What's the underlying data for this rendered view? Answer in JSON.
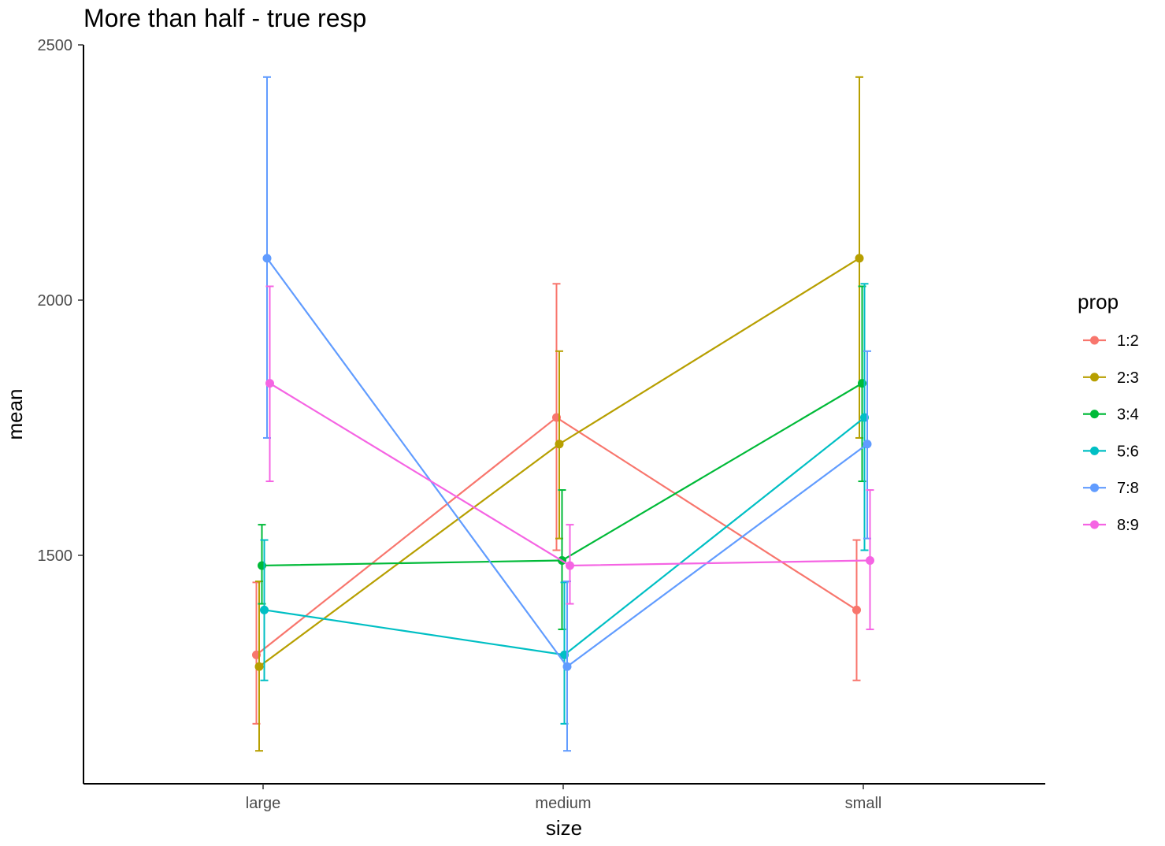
{
  "chart_data": {
    "type": "line",
    "title": "More than half - true resp",
    "xlabel": "size",
    "ylabel": "mean",
    "categories": [
      "large",
      "medium",
      "small"
    ],
    "yticks": [
      1500,
      2000,
      2500
    ],
    "ylim": [
      1055,
      2500
    ],
    "grid": false,
    "legend": {
      "title": "prop",
      "position": "right"
    },
    "series": [
      {
        "name": "1:2",
        "color": "#F8766D",
        "values": [
          1305,
          1770,
          1393
        ],
        "lower": [
          1170,
          1510,
          1255
        ],
        "upper": [
          1447,
          2032,
          1530
        ]
      },
      {
        "name": "2:3",
        "color": "#B79F00",
        "values": [
          1282,
          1718,
          2082
        ],
        "lower": [
          1117,
          1533,
          1730
        ],
        "upper": [
          1449,
          1900,
          2437
        ]
      },
      {
        "name": "3:4",
        "color": "#00BA38",
        "values": [
          1480,
          1490,
          1837
        ],
        "lower": [
          1405,
          1355,
          1645
        ],
        "upper": [
          1560,
          1628,
          2027
        ]
      },
      {
        "name": "5:6",
        "color": "#00BFC4",
        "values": [
          1393,
          1305,
          1770
        ],
        "lower": [
          1255,
          1170,
          1510
        ],
        "upper": [
          1530,
          1447,
          2032
        ]
      },
      {
        "name": "7:8",
        "color": "#619CFF",
        "values": [
          2082,
          1282,
          1718
        ],
        "lower": [
          1730,
          1117,
          1533
        ],
        "upper": [
          2437,
          1449,
          1900
        ]
      },
      {
        "name": "8:9",
        "color": "#F564E3",
        "values": [
          1837,
          1480,
          1490
        ],
        "lower": [
          1645,
          1405,
          1355
        ],
        "upper": [
          2027,
          1560,
          1628
        ]
      }
    ]
  }
}
